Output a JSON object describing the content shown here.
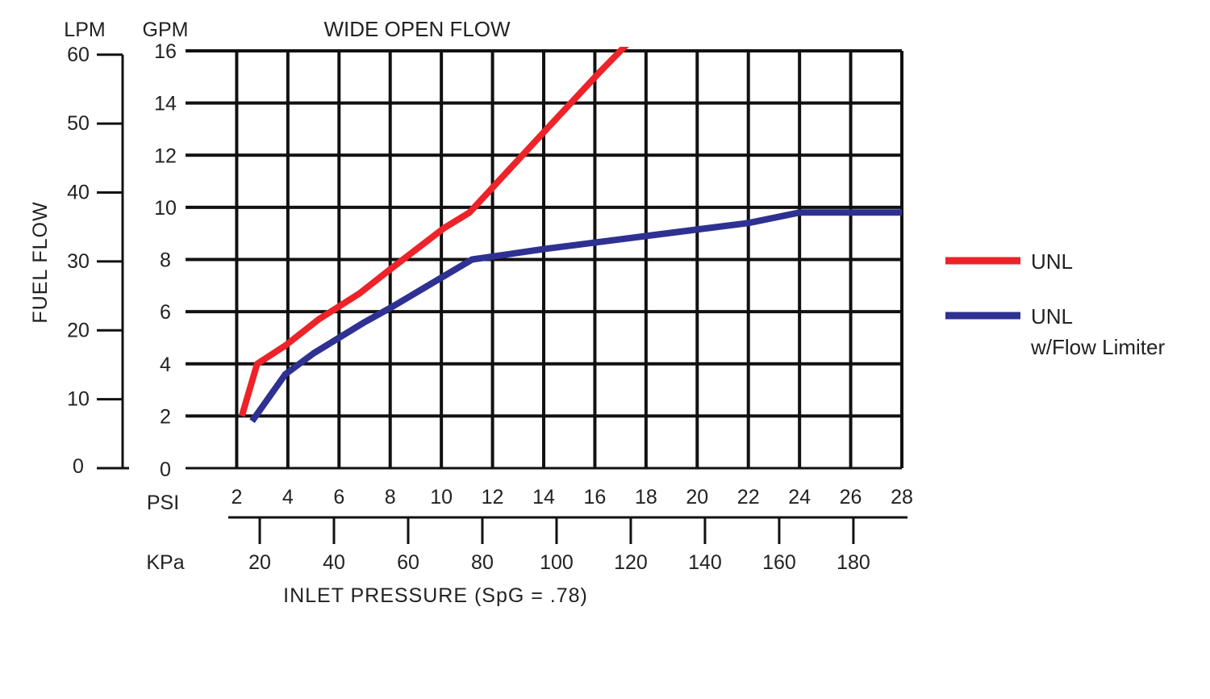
{
  "chart_data": {
    "type": "line",
    "title": "WIDE OPEN FLOW",
    "ylabel": "FUEL FLOW",
    "xlabel": "INLET PRESSURE (SpG = .78)",
    "x_unit": "PSI",
    "x_secondary_unit": "KPa",
    "y_unit": "GPM",
    "y_secondary_unit": "LPM",
    "xlim": [
      0,
      28
    ],
    "ylim": [
      0,
      16
    ],
    "x_ticks": [
      "2",
      "4",
      "6",
      "8",
      "10",
      "12",
      "14",
      "16",
      "18",
      "20",
      "22",
      "24",
      "26",
      "28"
    ],
    "y_ticks": [
      "0",
      "2",
      "4",
      "6",
      "8",
      "10",
      "12",
      "14",
      "16"
    ],
    "kpa_ticks": [
      "20",
      "40",
      "60",
      "80",
      "100",
      "120",
      "140",
      "160",
      "180"
    ],
    "lpm_ticks": [
      "0",
      "10",
      "20",
      "30",
      "40",
      "50",
      "60"
    ],
    "grid": true,
    "legend_position": "right",
    "series": [
      {
        "name": "UNL",
        "color": "#ee2229",
        "x": [
          2.2,
          2.8,
          3.9,
          5.2,
          6.8,
          8.1,
          10.1,
          11.1,
          12.7,
          14.4,
          16.2,
          18.0
        ],
        "y": [
          2.0,
          4.0,
          4.7,
          5.7,
          6.7,
          7.7,
          9.2,
          9.8,
          11.5,
          13.3,
          15.2,
          17.0
        ]
      },
      {
        "name": "UNL",
        "name_line2": "w/Flow Limiter",
        "color": "#2e3192",
        "x": [
          2.6,
          3.9,
          5.0,
          7.0,
          8.1,
          11.2,
          14.0,
          18.0,
          22.0,
          24.0,
          28.0
        ],
        "y": [
          1.8,
          3.6,
          4.4,
          5.6,
          6.2,
          8.0,
          8.4,
          8.9,
          9.4,
          9.8,
          9.8
        ]
      }
    ]
  }
}
